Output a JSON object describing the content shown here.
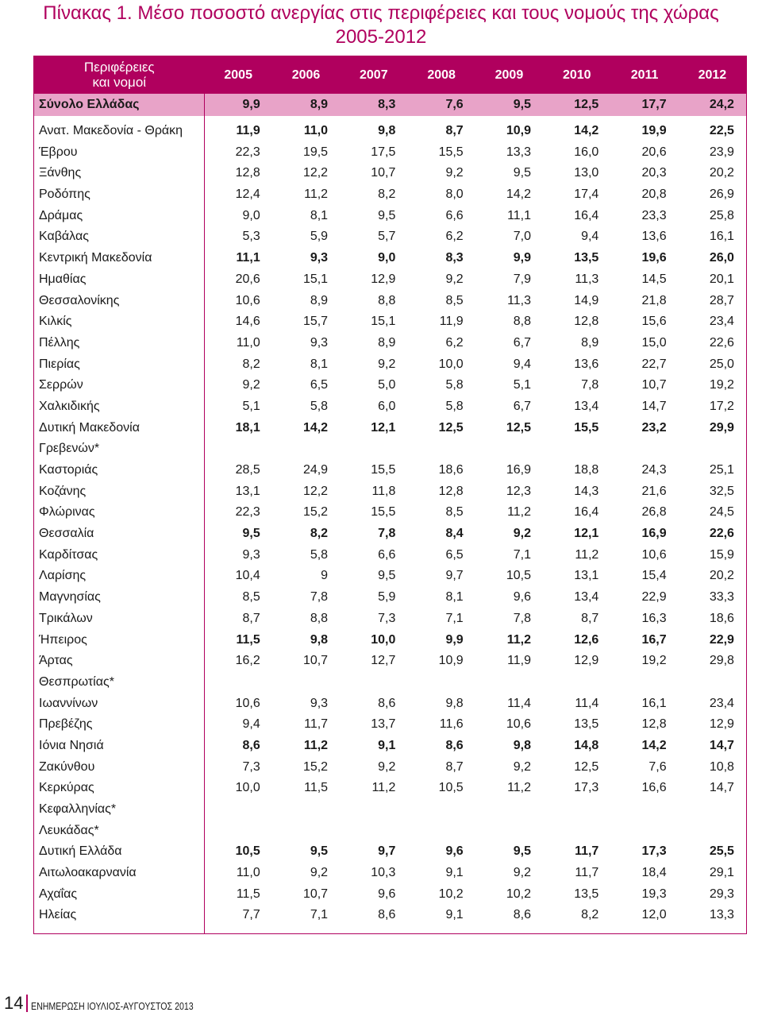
{
  "title_line1": "Πίνακας 1. Μέσο ποσοστό ανεργίας στις περιφέρειες και τους νομούς της χώρας",
  "title_line2": "2005-2012",
  "header": {
    "label_line1": "Περιφέρειες",
    "label_line2": "και νομοί",
    "years": [
      "2005",
      "2006",
      "2007",
      "2008",
      "2009",
      "2010",
      "2011",
      "2012"
    ]
  },
  "total": {
    "name": "Σύνολο Ελλάδας",
    "values": [
      "9,9",
      "8,9",
      "8,3",
      "7,6",
      "9,5",
      "12,5",
      "17,7",
      "24,2"
    ]
  },
  "rows": [
    {
      "name": "Ανατ. Μακεδονία - Θράκη",
      "region": true,
      "values": [
        "11,9",
        "11,0",
        "9,8",
        "8,7",
        "10,9",
        "14,2",
        "19,9",
        "22,5"
      ]
    },
    {
      "name": "Έβρου",
      "region": false,
      "values": [
        "22,3",
        "19,5",
        "17,5",
        "15,5",
        "13,3",
        "16,0",
        "20,6",
        "23,9"
      ]
    },
    {
      "name": "Ξάνθης",
      "region": false,
      "values": [
        "12,8",
        "12,2",
        "10,7",
        "9,2",
        "9,5",
        "13,0",
        "20,3",
        "20,2"
      ]
    },
    {
      "name": "Ροδόπης",
      "region": false,
      "values": [
        "12,4",
        "11,2",
        "8,2",
        "8,0",
        "14,2",
        "17,4",
        "20,8",
        "26,9"
      ]
    },
    {
      "name": "Δράμας",
      "region": false,
      "values": [
        "9,0",
        "8,1",
        "9,5",
        "6,6",
        "11,1",
        "16,4",
        "23,3",
        "25,8"
      ]
    },
    {
      "name": "Καβάλας",
      "region": false,
      "values": [
        "5,3",
        "5,9",
        "5,7",
        "6,2",
        "7,0",
        "9,4",
        "13,6",
        "16,1"
      ]
    },
    {
      "name": "Κεντρική Μακεδονία",
      "region": true,
      "values": [
        "11,1",
        "9,3",
        "9,0",
        "8,3",
        "9,9",
        "13,5",
        "19,6",
        "26,0"
      ]
    },
    {
      "name": "Ημαθίας",
      "region": false,
      "values": [
        "20,6",
        "15,1",
        "12,9",
        "9,2",
        "7,9",
        "11,3",
        "14,5",
        "20,1"
      ]
    },
    {
      "name": "Θεσσαλονίκης",
      "region": false,
      "values": [
        "10,6",
        "8,9",
        "8,8",
        "8,5",
        "11,3",
        "14,9",
        "21,8",
        "28,7"
      ]
    },
    {
      "name": "Κιλκίς",
      "region": false,
      "values": [
        "14,6",
        "15,7",
        "15,1",
        "11,9",
        "8,8",
        "12,8",
        "15,6",
        "23,4"
      ]
    },
    {
      "name": "Πέλλης",
      "region": false,
      "values": [
        "11,0",
        "9,3",
        "8,9",
        "6,2",
        "6,7",
        "8,9",
        "15,0",
        "22,6"
      ]
    },
    {
      "name": "Πιερίας",
      "region": false,
      "values": [
        "8,2",
        "8,1",
        "9,2",
        "10,0",
        "9,4",
        "13,6",
        "22,7",
        "25,0"
      ]
    },
    {
      "name": "Σερρών",
      "region": false,
      "values": [
        "9,2",
        "6,5",
        "5,0",
        "5,8",
        "5,1",
        "7,8",
        "10,7",
        "19,2"
      ]
    },
    {
      "name": "Χαλκιδικής",
      "region": false,
      "values": [
        "5,1",
        "5,8",
        "6,0",
        "5,8",
        "6,7",
        "13,4",
        "14,7",
        "17,2"
      ]
    },
    {
      "name": "Δυτική Μακεδονία",
      "region": true,
      "values": [
        "18,1",
        "14,2",
        "12,1",
        "12,5",
        "12,5",
        "15,5",
        "23,2",
        "29,9"
      ]
    },
    {
      "name": "Γρεβενών*",
      "region": false,
      "values": [
        "",
        "",
        "",
        "",
        "",
        "",
        "",
        ""
      ]
    },
    {
      "name": "Καστοριάς",
      "region": false,
      "values": [
        "28,5",
        "24,9",
        "15,5",
        "18,6",
        "16,9",
        "18,8",
        "24,3",
        "25,1"
      ]
    },
    {
      "name": "Κοζάνης",
      "region": false,
      "values": [
        "13,1",
        "12,2",
        "11,8",
        "12,8",
        "12,3",
        "14,3",
        "21,6",
        "32,5"
      ]
    },
    {
      "name": "Φλώρινας",
      "region": false,
      "values": [
        "22,3",
        "15,2",
        "15,5",
        "8,5",
        "11,2",
        "16,4",
        "26,8",
        "24,5"
      ]
    },
    {
      "name": "Θεσσαλία",
      "region": true,
      "values": [
        "9,5",
        "8,2",
        "7,8",
        "8,4",
        "9,2",
        "12,1",
        "16,9",
        "22,6"
      ]
    },
    {
      "name": "Καρδίτσας",
      "region": false,
      "values": [
        "9,3",
        "5,8",
        "6,6",
        "6,5",
        "7,1",
        "11,2",
        "10,6",
        "15,9"
      ]
    },
    {
      "name": "Λαρίσης",
      "region": false,
      "values": [
        "10,4",
        "9",
        "9,5",
        "9,7",
        "10,5",
        "13,1",
        "15,4",
        "20,2"
      ]
    },
    {
      "name": "Μαγνησίας",
      "region": false,
      "values": [
        "8,5",
        "7,8",
        "5,9",
        "8,1",
        "9,6",
        "13,4",
        "22,9",
        "33,3"
      ]
    },
    {
      "name": "Τρικάλων",
      "region": false,
      "values": [
        "8,7",
        "8,8",
        "7,3",
        "7,1",
        "7,8",
        "8,7",
        "16,3",
        "18,6"
      ]
    },
    {
      "name": "Ήπειρος",
      "region": true,
      "values": [
        "11,5",
        "9,8",
        "10,0",
        "9,9",
        "11,2",
        "12,6",
        "16,7",
        "22,9"
      ]
    },
    {
      "name": "Άρτας",
      "region": false,
      "values": [
        "16,2",
        "10,7",
        "12,7",
        "10,9",
        "11,9",
        "12,9",
        "19,2",
        "29,8"
      ]
    },
    {
      "name": "Θεσπρωτίας*",
      "region": false,
      "values": [
        "",
        "",
        "",
        "",
        "",
        "",
        "",
        ""
      ]
    },
    {
      "name": "Ιωαννίνων",
      "region": false,
      "values": [
        "10,6",
        "9,3",
        "8,6",
        "9,8",
        "11,4",
        "11,4",
        "16,1",
        "23,4"
      ]
    },
    {
      "name": "Πρεβέζης",
      "region": false,
      "values": [
        "9,4",
        "11,7",
        "13,7",
        "11,6",
        "10,6",
        "13,5",
        "12,8",
        "12,9"
      ]
    },
    {
      "name": "Ιόνια Νησιά",
      "region": true,
      "values": [
        "8,6",
        "11,2",
        "9,1",
        "8,6",
        "9,8",
        "14,8",
        "14,2",
        "14,7"
      ]
    },
    {
      "name": "Ζακύνθου",
      "region": false,
      "values": [
        "7,3",
        "15,2",
        "9,2",
        "8,7",
        "9,2",
        "12,5",
        "7,6",
        "10,8"
      ]
    },
    {
      "name": "Κερκύρας",
      "region": false,
      "values": [
        "10,0",
        "11,5",
        "11,2",
        "10,5",
        "11,2",
        "17,3",
        "16,6",
        "14,7"
      ]
    },
    {
      "name": "Κεφαλληνίας*",
      "region": false,
      "values": [
        "",
        "",
        "",
        "",
        "",
        "",
        "",
        ""
      ]
    },
    {
      "name": "Λευκάδας*",
      "region": false,
      "values": [
        "",
        "",
        "",
        "",
        "",
        "",
        "",
        ""
      ]
    },
    {
      "name": "Δυτική Ελλάδα",
      "region": true,
      "values": [
        "10,5",
        "9,5",
        "9,7",
        "9,6",
        "9,5",
        "11,7",
        "17,3",
        "25,5"
      ]
    },
    {
      "name": "Αιτωλοακαρνανία",
      "region": false,
      "values": [
        "11,0",
        "9,2",
        "10,3",
        "9,1",
        "9,2",
        "11,7",
        "18,4",
        "29,1"
      ]
    },
    {
      "name": "Αχαΐας",
      "region": false,
      "values": [
        "11,5",
        "10,7",
        "9,6",
        "10,2",
        "10,2",
        "13,5",
        "19,3",
        "29,3"
      ]
    },
    {
      "name": "Ηλείας",
      "region": false,
      "values": [
        "7,7",
        "7,1",
        "8,6",
        "9,1",
        "8,6",
        "8,2",
        "12,0",
        "13,3"
      ]
    }
  ],
  "footer": {
    "page_number": "14",
    "publication": "ΕΝΗΜΕΡΩΣΗ ΙΟΥΛΙΟΣ-ΑΥΓΟΥΣΤΟΣ 2013"
  },
  "colors": {
    "accent": "#b0005e",
    "total_row_bg": "#e8a3c8"
  }
}
